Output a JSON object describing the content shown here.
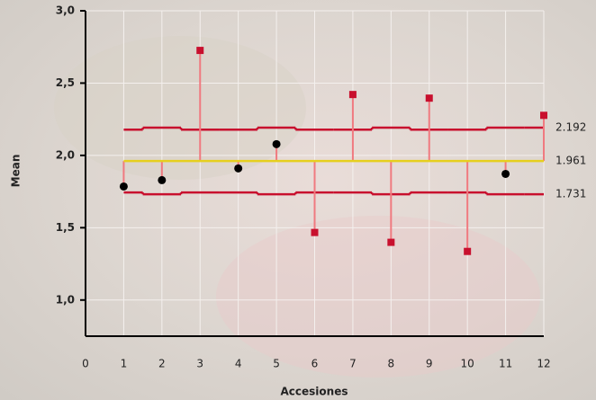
{
  "chart_data": {
    "type": "anom",
    "x_label": "Accesiones",
    "y_label": "Mean",
    "x": [
      1,
      2,
      3,
      4,
      5,
      6,
      7,
      8,
      9,
      10,
      11,
      12
    ],
    "values": [
      1.785,
      1.829,
      2.726,
      1.91,
      2.078,
      1.467,
      2.421,
      1.399,
      2.396,
      1.336,
      1.872,
      2.277
    ],
    "center": 1.961,
    "udl": [
      2.178,
      2.192,
      2.178,
      2.178,
      2.192,
      2.178,
      2.178,
      2.192,
      2.178,
      2.178,
      2.192,
      2.192
    ],
    "ldl": [
      1.744,
      1.731,
      1.744,
      1.744,
      1.731,
      1.744,
      1.744,
      1.731,
      1.744,
      1.744,
      1.731,
      1.731
    ],
    "limit_labels": [
      2.192,
      1.961,
      1.731
    ],
    "xlim": [
      0,
      12
    ],
    "xticks": [
      0,
      1,
      2,
      3,
      4,
      5,
      6,
      7,
      8,
      9,
      10,
      11,
      12
    ],
    "ylim": [
      0.75,
      3.0
    ],
    "yticks": [
      {
        "value": 1.0,
        "label": "1,0"
      },
      {
        "value": 1.5,
        "label": "1,5"
      },
      {
        "value": 2.0,
        "label": "2,0"
      },
      {
        "value": 2.5,
        "label": "2,5"
      },
      {
        "value": 3.0,
        "label": "3,0"
      }
    ],
    "grid": true,
    "point_color": "#000000",
    "out_color": "#c8102e",
    "limit_color": "#c8102e",
    "center_color": "#e6cf1e",
    "stem_color": "#f07a80"
  }
}
